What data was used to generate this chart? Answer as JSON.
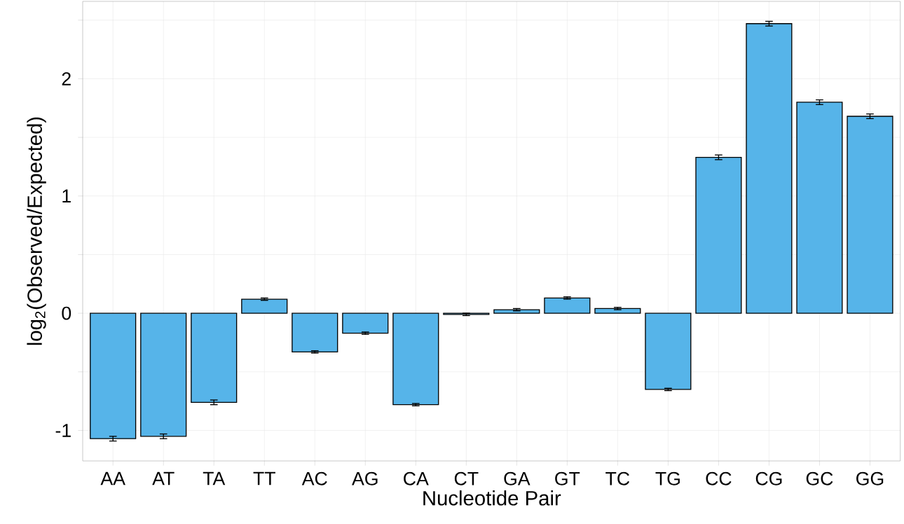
{
  "chart_data": {
    "type": "bar",
    "xlabel": "Nucleotide Pair",
    "ylabel": "log$_{2}$(Observed/Expected)",
    "categories": [
      "AA",
      "AT",
      "TA",
      "TT",
      "AC",
      "AG",
      "CA",
      "CT",
      "GA",
      "GT",
      "TC",
      "TG",
      "CC",
      "CG",
      "GC",
      "GG"
    ],
    "values": [
      -1.07,
      -1.05,
      -0.76,
      0.12,
      -0.33,
      -0.17,
      -0.78,
      -0.01,
      0.03,
      0.13,
      0.04,
      -0.65,
      1.33,
      2.47,
      1.8,
      1.68
    ],
    "errors": [
      0.02,
      0.02,
      0.02,
      0.01,
      0.01,
      0.01,
      0.01,
      0.01,
      0.01,
      0.01,
      0.01,
      0.01,
      0.02,
      0.02,
      0.02,
      0.02
    ],
    "color": "#56b4e9",
    "ylim": [
      -1.26,
      2.66
    ],
    "yticks": [
      -1,
      {
        "value": -0.5,
        "label": null
      },
      0,
      {
        "value": 0.5,
        "label": null
      },
      1,
      {
        "value": 1.5,
        "label": null
      },
      2,
      {
        "value": 2.5,
        "label": null
      }
    ],
    "grid": true
  }
}
